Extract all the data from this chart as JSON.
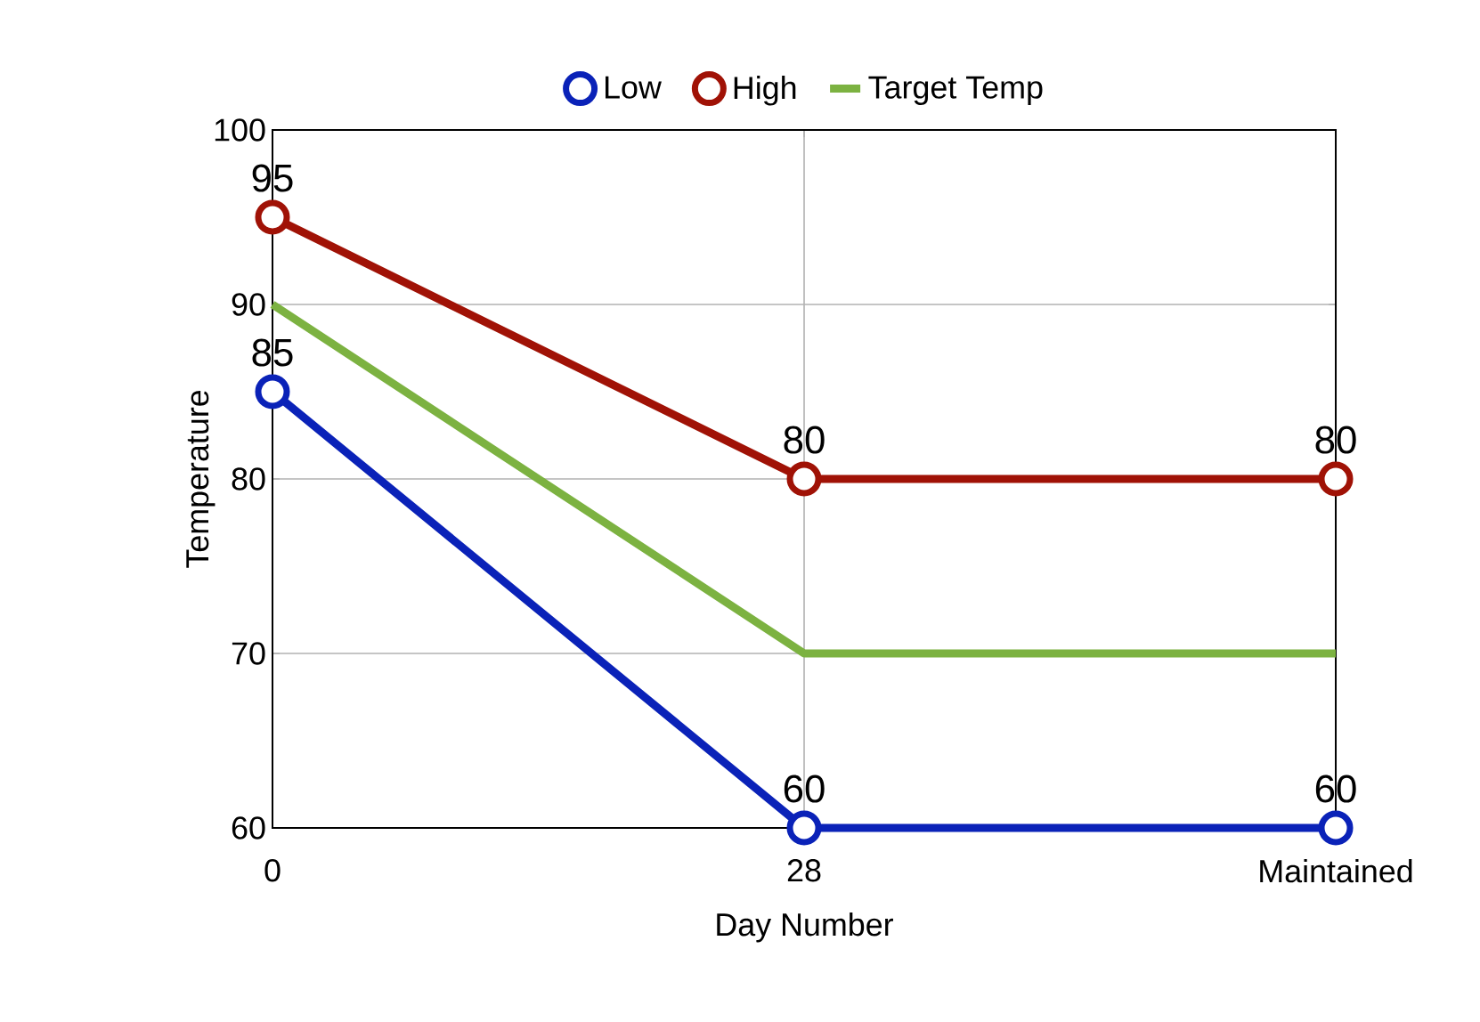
{
  "chart_data": {
    "type": "line",
    "xlabel": "Day Number",
    "ylabel": "Temperature",
    "categories": [
      "0",
      "28",
      "Maintained"
    ],
    "series": [
      {
        "name": "Low",
        "color": "#0a22b8",
        "values": [
          85,
          60,
          60
        ],
        "marker": "circle",
        "value_labels": [
          "85",
          "60",
          "60"
        ]
      },
      {
        "name": "High",
        "color": "#a01206",
        "values": [
          95,
          80,
          80
        ],
        "marker": "circle",
        "value_labels": [
          "95",
          "80",
          "80"
        ]
      },
      {
        "name": "Target Temp",
        "color": "#7cb241",
        "values": [
          90,
          70,
          70
        ],
        "marker": "none"
      }
    ],
    "ylim": [
      60,
      100
    ],
    "yticks": [
      60,
      70,
      80,
      90,
      100
    ],
    "grid": true,
    "legend": "top"
  }
}
